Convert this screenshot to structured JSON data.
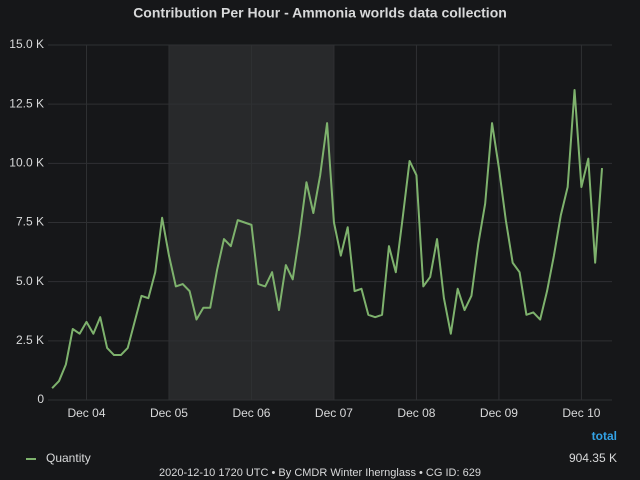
{
  "chart_data": {
    "type": "line",
    "title": "Contribution Per Hour - Ammonia worlds data collection",
    "footer": "2020-12-10 1720 UTC • By CMDR Winter Ihernglass • CG ID: 629",
    "series": [
      {
        "name": "Quantity",
        "color": "#7eb26d",
        "values": [
          0.5,
          0.8,
          1.5,
          3.0,
          2.8,
          3.3,
          2.8,
          3.5,
          2.2,
          1.9,
          1.9,
          2.2,
          3.3,
          4.4,
          4.3,
          5.4,
          7.7,
          6.1,
          4.8,
          4.9,
          4.6,
          3.4,
          3.9,
          3.9,
          5.5,
          6.8,
          6.5,
          7.6,
          7.5,
          7.4,
          4.9,
          4.8,
          5.4,
          3.8,
          5.7,
          5.1,
          7.0,
          9.2,
          7.9,
          9.5,
          11.7,
          7.5,
          6.1,
          7.3,
          4.6,
          4.7,
          3.6,
          3.5,
          3.6,
          6.5,
          5.4,
          7.7,
          10.1,
          9.5,
          4.8,
          5.2,
          6.8,
          4.3,
          2.8,
          4.7,
          3.8,
          4.4,
          6.6,
          8.3,
          11.7,
          9.8,
          7.6,
          5.8,
          5.4,
          3.6,
          3.7,
          3.4,
          4.6,
          6.1,
          7.8,
          9.0,
          13.1,
          9.0,
          10.2,
          5.8,
          9.8
        ]
      }
    ],
    "legend_total": {
      "header": "total",
      "value": "904.35 K"
    },
    "xlim": [
      -0.6,
      81.45
    ],
    "xticks": [
      {
        "value": 5,
        "label": "Dec 04"
      },
      {
        "value": 17,
        "label": "Dec 05"
      },
      {
        "value": 29,
        "label": "Dec 06"
      },
      {
        "value": 41,
        "label": "Dec 07"
      },
      {
        "value": 53,
        "label": "Dec 08"
      },
      {
        "value": 65,
        "label": "Dec 09"
      },
      {
        "value": 77,
        "label": "Dec 10"
      }
    ],
    "shaded_range": [
      17,
      41
    ],
    "ylim": [
      0,
      15
    ],
    "yticks": [
      0,
      {
        "value": 2.5,
        "label": "2.5 K"
      },
      {
        "value": 5,
        "label": "5.0 K"
      },
      {
        "value": 7.5,
        "label": "7.5 K"
      },
      {
        "value": 10,
        "label": "10.0 K"
      },
      {
        "value": 12.5,
        "label": "12.5 K"
      },
      {
        "value": 15,
        "label": "15.0 K"
      }
    ],
    "grid": true
  }
}
